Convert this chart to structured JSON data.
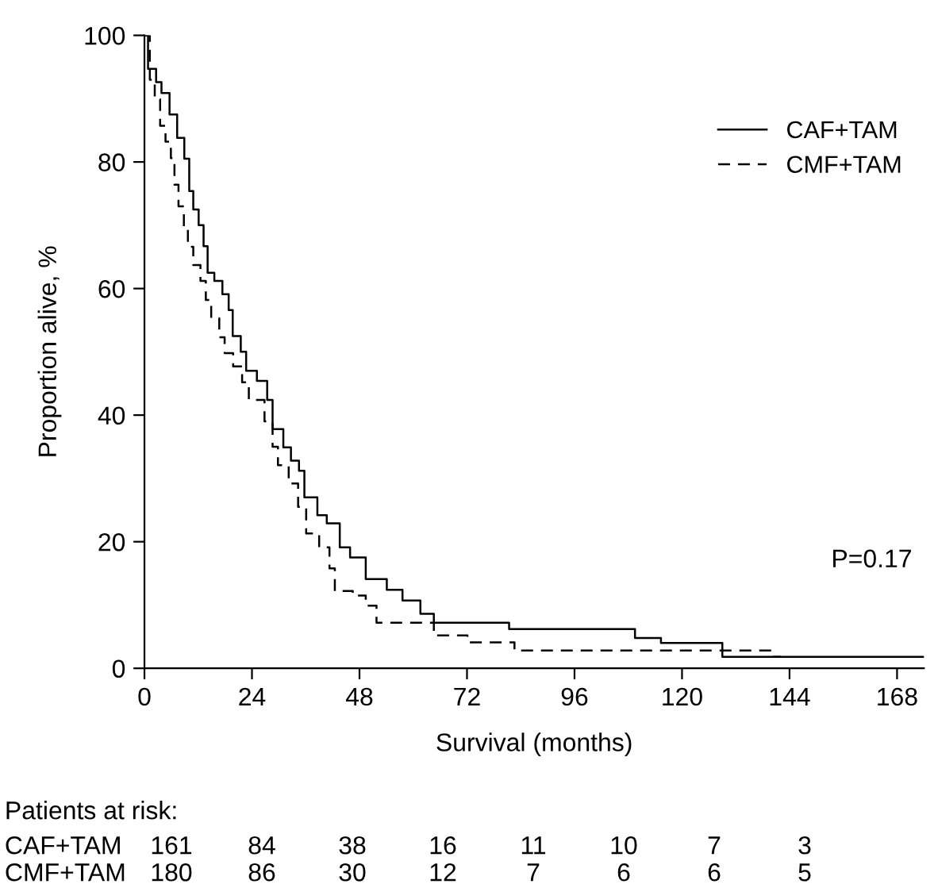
{
  "chart_data": {
    "type": "step",
    "xlabel": "Survival (months)",
    "ylabel": "Proportion alive, %",
    "xlim": [
      0,
      174
    ],
    "ylim": [
      0,
      100
    ],
    "xticks": [
      0,
      24,
      48,
      72,
      96,
      120,
      144,
      168
    ],
    "yticks": [
      0,
      20,
      40,
      60,
      80,
      100
    ],
    "legend": "top right",
    "grid": false,
    "series": [
      {
        "name": "CAF+TAM",
        "color": "#000000",
        "line_style": "solid",
        "x": [
          0,
          0.8,
          2.6,
          3.8,
          5.6,
          7.3,
          8.9,
          10.0,
          10.9,
          12.1,
          13.2,
          14.1,
          15.6,
          17.4,
          18.8,
          19.7,
          21.5,
          22.7,
          25.1,
          27.4,
          28.6,
          31.0,
          32.7,
          34.5,
          35.7,
          38.6,
          40.7,
          43.6,
          45.9,
          49.4,
          54.1,
          57.6,
          61.6,
          64.6,
          81.4,
          109.5,
          115.3,
          129,
          174
        ],
        "values": [
          100,
          94.7,
          92.6,
          90.9,
          87.5,
          83.8,
          80.5,
          75.4,
          72.5,
          70,
          66.7,
          62.5,
          61.2,
          59.1,
          56.6,
          52.5,
          50,
          47,
          45.4,
          42.4,
          37.8,
          34.9,
          32.8,
          31.2,
          27,
          24.2,
          22.9,
          19.1,
          17.5,
          14.1,
          12.4,
          10.7,
          8.6,
          7.2,
          6.2,
          4.8,
          4.0,
          1.8,
          1.8
        ]
      },
      {
        "name": "CMF+TAM",
        "color": "#000000",
        "line_style": "dashed",
        "x": [
          0,
          1.2,
          2.3,
          3.5,
          4.7,
          5.9,
          6.7,
          7.6,
          8.8,
          9.7,
          10.9,
          12.5,
          13.7,
          14.9,
          16.7,
          17.9,
          19.8,
          21.8,
          23.3,
          26.8,
          28.6,
          29.8,
          32.2,
          34.3,
          36.1,
          39.0,
          41.3,
          42.5,
          46.5,
          49.4,
          51.8,
          64.6,
          72.1,
          82.6,
          140.5,
          142
        ],
        "values": [
          100,
          93,
          89.9,
          85.7,
          83.2,
          80.6,
          76.4,
          73,
          69.6,
          66.6,
          63.7,
          61.2,
          58.2,
          55.3,
          52.3,
          49.8,
          47.7,
          45.2,
          42.4,
          39,
          35,
          32.1,
          29.2,
          25.5,
          21.3,
          19.1,
          15.8,
          12.2,
          11.5,
          9.9,
          7.2,
          5.2,
          4.1,
          2.8,
          1.8,
          1.8
        ]
      }
    ],
    "annotations": [
      "P=0.17",
      "Patients at risk:",
      "CAF+TAM 161 84 38 16 11 10 7 3",
      "CMF+TAM 180 86 30 12 7 6 6 5"
    ]
  }
}
